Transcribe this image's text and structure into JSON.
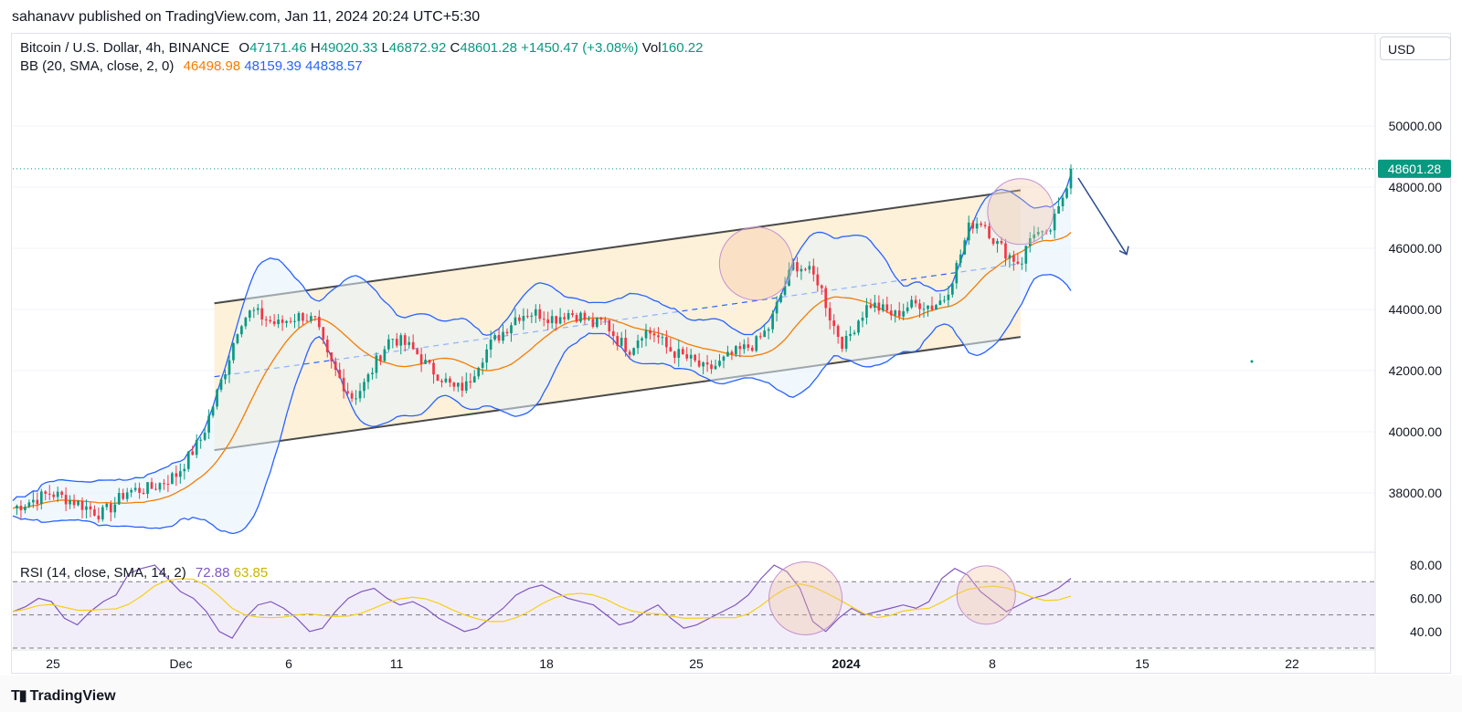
{
  "header": {
    "publisher": "sahanavv published on TradingView.com, Jan 11, 2024 20:24 UTC+5:30"
  },
  "legend": {
    "symbol": "Bitcoin / U.S. Dollar, 4h, BINANCE",
    "o_label": "O",
    "o": "47171.46",
    "h_label": "H",
    "h": "49020.33",
    "l_label": "L",
    "l": "46872.92",
    "c_label": "C",
    "c": "48601.28",
    "change": "+1450.47 (+3.08%)",
    "vol_label": "Vol",
    "vol": "160.22",
    "bb_label": "BB (20, SMA, close, 2, 0)",
    "bb_basis": "46498.98",
    "bb_upper": "48159.39",
    "bb_lower": "44838.57",
    "rsi_label": "RSI (14, close, SMA, 14, 2)",
    "rsi_value": "72.88",
    "rsi_ma": "63.85"
  },
  "currency_button": "USD",
  "footer": {
    "brand": "TradingView"
  },
  "colors": {
    "up": "#089981",
    "down": "#f23645",
    "bb_basis": "#f57c00",
    "bb_band": "#2962ff",
    "channel_fill": "#fdf0d5",
    "channel_line": "#4a4a4a",
    "rsi": "#7e57c2",
    "rsi_ma": "#f5d016",
    "circle": "#f4c2a0"
  },
  "chart_data": {
    "type": "candlestick",
    "symbol": "BTCUSD",
    "interval": "4h",
    "price_axis": {
      "ticks": [
        "38000.00",
        "40000.00",
        "42000.00",
        "44000.00",
        "46000.00",
        "48000.00",
        "50000.00"
      ],
      "ylim": [
        36000,
        52000
      ],
      "last_price_label": "48601.28",
      "last_price": 48601.28
    },
    "time_axis": {
      "ticks": [
        "25",
        "Dec",
        "6",
        "11",
        "18",
        "25",
        "2024",
        "8",
        "15",
        "22"
      ]
    },
    "rsi_axis": {
      "ticks": [
        "80.00",
        "60.00",
        "40.00"
      ],
      "ylim": [
        30,
        85
      ],
      "levels": [
        70,
        50,
        30
      ]
    },
    "price_path": [
      {
        "t": 0,
        "p": 37500
      },
      {
        "t": 3,
        "p": 38000
      },
      {
        "t": 5,
        "p": 37700
      },
      {
        "t": 7,
        "p": 37300
      },
      {
        "t": 8,
        "p": 37600
      },
      {
        "t": 9,
        "p": 38050
      },
      {
        "t": 11,
        "p": 38150
      },
      {
        "t": 13,
        "p": 38600
      },
      {
        "t": 14,
        "p": 39200
      },
      {
        "t": 15,
        "p": 39800
      },
      {
        "t": 16,
        "p": 41000
      },
      {
        "t": 17,
        "p": 42200
      },
      {
        "t": 18,
        "p": 43600
      },
      {
        "t": 19,
        "p": 43950
      },
      {
        "t": 20,
        "p": 43700
      },
      {
        "t": 21,
        "p": 43500
      },
      {
        "t": 22,
        "p": 43700
      },
      {
        "t": 23,
        "p": 43800
      },
      {
        "t": 24,
        "p": 43600
      },
      {
        "t": 25,
        "p": 42400
      },
      {
        "t": 26,
        "p": 41700
      },
      {
        "t": 27,
        "p": 41100
      },
      {
        "t": 28,
        "p": 41600
      },
      {
        "t": 29,
        "p": 42400
      },
      {
        "t": 30,
        "p": 43100
      },
      {
        "t": 31,
        "p": 42900
      },
      {
        "t": 32,
        "p": 42600
      },
      {
        "t": 33,
        "p": 42100
      },
      {
        "t": 34,
        "p": 41800
      },
      {
        "t": 35,
        "p": 41400
      },
      {
        "t": 36,
        "p": 41500
      },
      {
        "t": 37,
        "p": 42300
      },
      {
        "t": 38,
        "p": 42900
      },
      {
        "t": 39,
        "p": 43300
      },
      {
        "t": 40,
        "p": 43800
      },
      {
        "t": 41,
        "p": 43900
      },
      {
        "t": 42,
        "p": 43850
      },
      {
        "t": 43,
        "p": 43700
      },
      {
        "t": 44,
        "p": 43900
      },
      {
        "t": 45,
        "p": 43800
      },
      {
        "t": 46,
        "p": 43500
      },
      {
        "t": 47,
        "p": 43600
      },
      {
        "t": 48,
        "p": 43000
      },
      {
        "t": 49,
        "p": 42700
      },
      {
        "t": 50,
        "p": 43300
      },
      {
        "t": 51,
        "p": 43200
      },
      {
        "t": 52,
        "p": 42700
      },
      {
        "t": 53,
        "p": 42500
      },
      {
        "t": 54,
        "p": 42300
      },
      {
        "t": 55,
        "p": 42000
      },
      {
        "t": 56,
        "p": 42200
      },
      {
        "t": 57,
        "p": 42500
      },
      {
        "t": 58,
        "p": 42700
      },
      {
        "t": 59,
        "p": 42900
      },
      {
        "t": 60,
        "p": 43400
      },
      {
        "t": 61,
        "p": 44500
      },
      {
        "t": 62,
        "p": 45500
      },
      {
        "t": 63,
        "p": 45300
      },
      {
        "t": 64,
        "p": 44900
      },
      {
        "t": 65,
        "p": 43600
      },
      {
        "t": 66,
        "p": 42800
      },
      {
        "t": 67,
        "p": 43600
      },
      {
        "t": 68,
        "p": 44200
      },
      {
        "t": 69,
        "p": 44000
      },
      {
        "t": 70,
        "p": 43800
      },
      {
        "t": 71,
        "p": 44100
      },
      {
        "t": 72,
        "p": 44200
      },
      {
        "t": 73,
        "p": 44100
      },
      {
        "t": 74,
        "p": 44400
      },
      {
        "t": 75,
        "p": 45500
      },
      {
        "t": 76,
        "p": 46800
      },
      {
        "t": 77,
        "p": 46900
      },
      {
        "t": 78,
        "p": 46200
      },
      {
        "t": 79,
        "p": 45800
      },
      {
        "t": 80,
        "p": 45500
      },
      {
        "t": 81,
        "p": 46600
      },
      {
        "t": 82,
        "p": 46300
      },
      {
        "t": 83,
        "p": 47200
      },
      {
        "t": 84,
        "p": 48601
      }
    ],
    "channel": {
      "upper": [
        [
          16,
          44200
        ],
        [
          80,
          47900
        ]
      ],
      "lower": [
        [
          16,
          39400
        ],
        [
          80,
          43100
        ]
      ],
      "mid": [
        [
          16,
          41800
        ],
        [
          80,
          45500
        ]
      ]
    },
    "forecast_arrow": {
      "from": 48000,
      "to": 45800
    },
    "rsi_path": [
      52,
      55,
      60,
      58,
      48,
      44,
      52,
      58,
      62,
      75,
      78,
      80,
      72,
      64,
      60,
      52,
      40,
      36,
      48,
      56,
      58,
      54,
      48,
      40,
      42,
      52,
      60,
      64,
      66,
      60,
      56,
      58,
      54,
      48,
      44,
      40,
      42,
      48,
      54,
      62,
      66,
      68,
      64,
      60,
      58,
      56,
      50,
      44,
      46,
      52,
      56,
      48,
      42,
      44,
      48,
      52,
      56,
      62,
      72,
      80,
      76,
      66,
      46,
      40,
      48,
      54,
      50,
      52,
      54,
      56,
      54,
      58,
      72,
      78,
      74,
      64,
      58,
      52,
      56,
      60,
      62,
      66,
      72
    ]
  }
}
